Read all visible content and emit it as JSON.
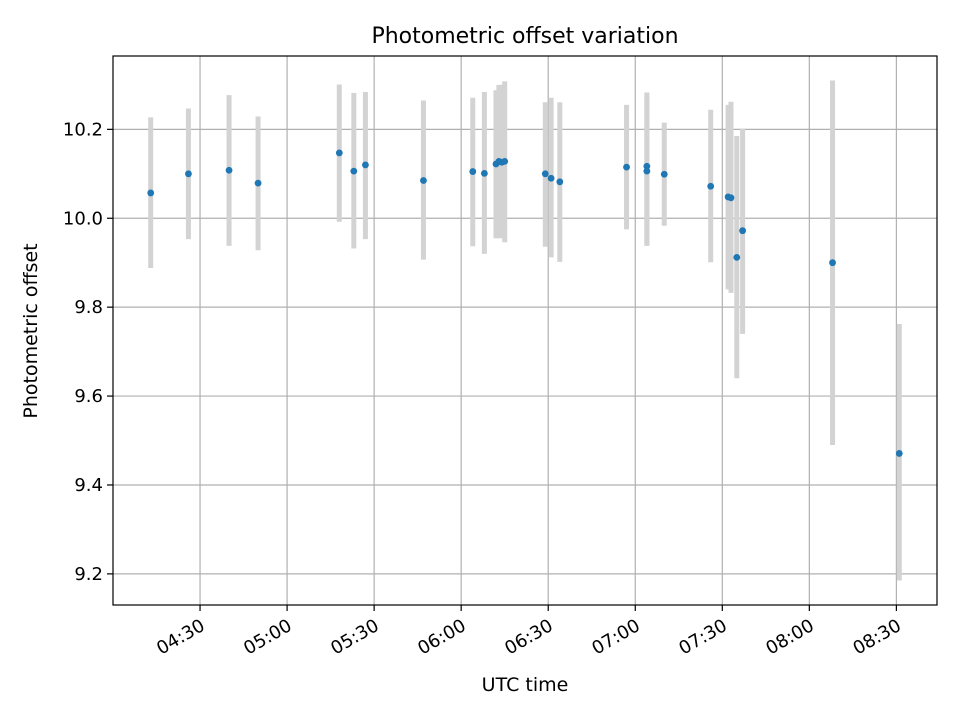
{
  "chart_data": {
    "type": "scatter",
    "title": "Photometric offset variation",
    "xlabel": "UTC time",
    "ylabel": "Photometric offset",
    "grid": true,
    "x_ticks": [
      "04:30",
      "05:00",
      "05:30",
      "06:00",
      "06:30",
      "07:00",
      "07:30",
      "08:00",
      "08:30"
    ],
    "y_ticks": [
      "9.2",
      "9.4",
      "9.6",
      "9.8",
      "10.0",
      "10.2"
    ],
    "xlim": [
      "04:00",
      "08:44"
    ],
    "ylim": [
      9.13,
      10.365
    ],
    "colors": {
      "points": "#1f77b4",
      "error_bars": "#d3d3d3",
      "grid": "#b0b0b0"
    },
    "series": [
      {
        "points": [
          {
            "x": "04:13",
            "y": 10.057,
            "lo": 9.888,
            "hi": 10.227
          },
          {
            "x": "04:26",
            "y": 10.1,
            "lo": 9.953,
            "hi": 10.247
          },
          {
            "x": "04:40",
            "y": 10.108,
            "lo": 9.938,
            "hi": 10.277
          },
          {
            "x": "04:50",
            "y": 10.079,
            "lo": 9.928,
            "hi": 10.229
          },
          {
            "x": "05:18",
            "y": 10.147,
            "lo": 9.992,
            "hi": 10.301
          },
          {
            "x": "05:23",
            "y": 10.106,
            "lo": 9.932,
            "hi": 10.282
          },
          {
            "x": "05:27",
            "y": 10.12,
            "lo": 9.953,
            "hi": 10.284
          },
          {
            "x": "05:47",
            "y": 10.085,
            "lo": 9.907,
            "hi": 10.265
          },
          {
            "x": "06:04",
            "y": 10.105,
            "lo": 9.937,
            "hi": 10.271
          },
          {
            "x": "06:08",
            "y": 10.101,
            "lo": 9.92,
            "hi": 10.284
          },
          {
            "x": "06:12",
            "y": 10.122,
            "lo": 9.955,
            "hi": 10.288
          },
          {
            "x": "06:13",
            "y": 10.128,
            "lo": 9.955,
            "hi": 10.3
          },
          {
            "x": "06:14",
            "y": 10.126,
            "lo": 9.955,
            "hi": 10.3
          },
          {
            "x": "06:15",
            "y": 10.128,
            "lo": 9.946,
            "hi": 10.308
          },
          {
            "x": "06:29",
            "y": 10.1,
            "lo": 9.936,
            "hi": 10.261
          },
          {
            "x": "06:31",
            "y": 10.09,
            "lo": 9.912,
            "hi": 10.271
          },
          {
            "x": "06:34",
            "y": 10.082,
            "lo": 9.902,
            "hi": 10.261
          },
          {
            "x": "06:57",
            "y": 10.115,
            "lo": 9.975,
            "hi": 10.255
          },
          {
            "x": "07:04",
            "y": 10.117,
            "lo": 9.94,
            "hi": 10.283
          },
          {
            "x": "07:04",
            "y": 10.106,
            "lo": 9.938,
            "hi": 10.275
          },
          {
            "x": "07:10",
            "y": 10.099,
            "lo": 9.983,
            "hi": 10.215
          },
          {
            "x": "07:26",
            "y": 10.072,
            "lo": 9.901,
            "hi": 10.244
          },
          {
            "x": "07:32",
            "y": 10.048,
            "lo": 9.84,
            "hi": 10.255
          },
          {
            "x": "07:33",
            "y": 10.046,
            "lo": 9.832,
            "hi": 10.262
          },
          {
            "x": "07:35",
            "y": 9.912,
            "lo": 9.64,
            "hi": 10.185
          },
          {
            "x": "07:37",
            "y": 9.972,
            "lo": 9.74,
            "hi": 10.202
          },
          {
            "x": "08:08",
            "y": 9.9,
            "lo": 9.49,
            "hi": 10.31
          },
          {
            "x": "08:31",
            "y": 9.471,
            "lo": 9.185,
            "hi": 9.762
          }
        ]
      }
    ]
  }
}
